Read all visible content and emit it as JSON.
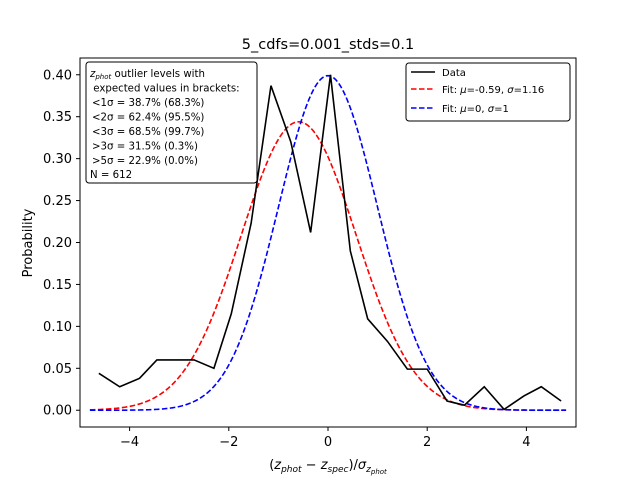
{
  "chart_data": {
    "type": "line",
    "title": "5_cdfs=0.001_stds=0.1",
    "xlabel": "(z_phot − z_spec)/σ_z_phot",
    "ylabel": "Probability",
    "xlim": [
      -5,
      5
    ],
    "ylim": [
      -0.02,
      0.42
    ],
    "xticks": [
      -4,
      -2,
      0,
      2,
      4
    ],
    "xtick_labels": [
      "−4",
      "−2",
      "0",
      "2",
      "4"
    ],
    "yticks": [
      0.0,
      0.05,
      0.1,
      0.15,
      0.2,
      0.25,
      0.3,
      0.35,
      0.4
    ],
    "ytick_labels": [
      "0.00",
      "0.05",
      "0.10",
      "0.15",
      "0.20",
      "0.25",
      "0.30",
      "0.35",
      "0.40"
    ],
    "series": [
      {
        "name": "Data",
        "color": "#000000",
        "style": "solid",
        "x": [
          -4.62,
          -4.2,
          -3.8,
          -3.45,
          -3.05,
          -2.7,
          -2.3,
          -1.95,
          -1.55,
          -1.15,
          -0.75,
          -0.35,
          0.05,
          0.45,
          0.8,
          1.2,
          1.6,
          2.0,
          2.4,
          2.75,
          3.15,
          3.55,
          3.95,
          4.3,
          4.7
        ],
        "y": [
          0.044,
          0.028,
          0.038,
          0.06,
          0.06,
          0.06,
          0.05,
          0.115,
          0.223,
          0.387,
          0.32,
          0.212,
          0.4,
          0.19,
          0.109,
          0.082,
          0.049,
          0.049,
          0.011,
          0.006,
          0.028,
          0.001,
          0.017,
          0.028,
          0.011
        ]
      },
      {
        "name": "Fit: μ=-0.59, σ=1.16",
        "color": "#ff0000",
        "style": "dashed",
        "mu": -0.59,
        "sigma": 1.16
      },
      {
        "name": "Fit: μ=0, σ=1",
        "color": "#0000ff",
        "style": "dashed",
        "mu": 0,
        "sigma": 1
      }
    ],
    "legend_position": "top-right",
    "info_box": {
      "position": "top-left",
      "lines": [
        "z_phot outlier levels with",
        " expected values in brackets:",
        "<1σ = 38.7% (68.3%)",
        "<2σ = 62.4% (95.5%)",
        "<3σ = 68.5% (99.7%)",
        ">3σ = 31.5% (0.3%)",
        ">5σ = 22.9% (0.0%)",
        "N = 612"
      ]
    },
    "grid": false
  }
}
